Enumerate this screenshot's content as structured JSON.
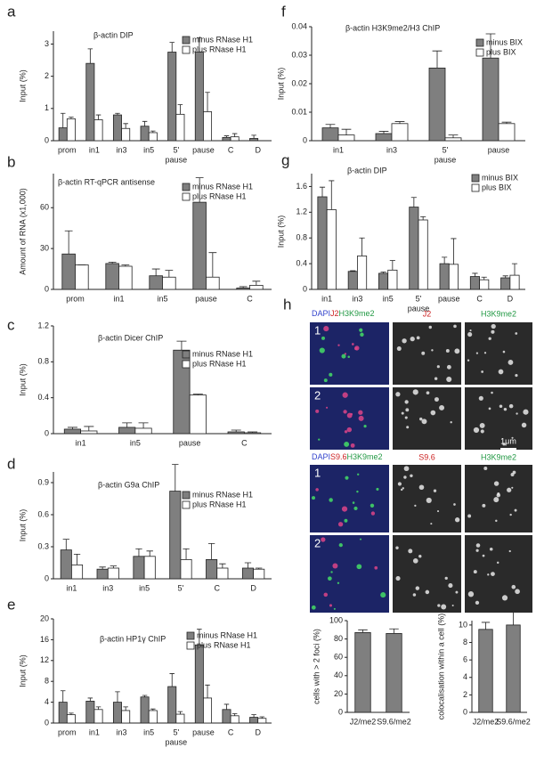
{
  "chart_data": [
    {
      "panel": "a",
      "type": "bar",
      "title": "β-actin DIP",
      "ylabel": "Input (%)",
      "xlabel": "pause",
      "categories": [
        "prom",
        "in1",
        "in3",
        "in5",
        "5'",
        "pause",
        "C",
        "D"
      ],
      "series": [
        {
          "name": "minus RNase H1",
          "color": "#7f7f7f",
          "values": [
            0.4,
            2.4,
            0.8,
            0.45,
            2.75,
            2.75,
            0.1,
            0.07
          ],
          "errors": [
            0.45,
            0.45,
            0.05,
            0.15,
            0.3,
            0.45,
            0.05,
            0.1
          ]
        },
        {
          "name": "plus RNase H1",
          "color": "#ffffff",
          "values": [
            0.68,
            0.65,
            0.38,
            0.25,
            0.82,
            0.9,
            0.12,
            0
          ],
          "errors": [
            0.05,
            0.15,
            0.15,
            0.05,
            0.3,
            0.6,
            0.1,
            0
          ]
        }
      ],
      "ylim": [
        0,
        3.4
      ],
      "yticks": [
        0,
        1,
        2,
        3
      ],
      "legend": "upper right"
    },
    {
      "panel": "b",
      "type": "bar",
      "title": "β-actin RT-qPCR antisense",
      "ylabel": "Amount of  RNA (x1,000)",
      "categories": [
        "prom",
        "in1",
        "in5",
        "pause",
        "C"
      ],
      "series": [
        {
          "name": "minus RNase H1",
          "color": "#7f7f7f",
          "values": [
            26,
            19,
            10,
            64,
            1
          ],
          "errors": [
            17,
            1,
            5,
            18,
            1
          ]
        },
        {
          "name": "plus RNase H1",
          "color": "#ffffff",
          "values": [
            18,
            17,
            9,
            9,
            3
          ],
          "errors": [
            0,
            1,
            5,
            18,
            3
          ]
        }
      ],
      "ylim": [
        0,
        85
      ],
      "yticks": [
        0,
        30,
        60
      ],
      "legend": "upper right"
    },
    {
      "panel": "c",
      "type": "bar",
      "title": "β-actin Dicer ChIP",
      "ylabel": "Input (%)",
      "categories": [
        "in1",
        "in5",
        "pause",
        "C"
      ],
      "series": [
        {
          "name": "minus RNase H1",
          "color": "#7f7f7f",
          "values": [
            0.05,
            0.07,
            0.93,
            0.02
          ],
          "errors": [
            0.02,
            0.05,
            0.1,
            0.02
          ]
        },
        {
          "name": "plus RNase H1",
          "color": "#ffffff",
          "values": [
            0.03,
            0.06,
            0.43,
            0.01
          ],
          "errors": [
            0.05,
            0.06,
            0.01,
            0.01
          ]
        }
      ],
      "ylim": [
        0,
        1.2
      ],
      "yticks": [
        0,
        0.4,
        0.8,
        1.2
      ],
      "legend": "upper right"
    },
    {
      "panel": "d",
      "type": "bar",
      "title": "β-actin G9a ChIP",
      "ylabel": "Input (%)",
      "categories": [
        "in1",
        "in3",
        "in5",
        "5'",
        "C",
        "D"
      ],
      "series": [
        {
          "name": "minus RNase H1",
          "color": "#7f7f7f",
          "values": [
            0.27,
            0.09,
            0.21,
            0.82,
            0.18,
            0.1
          ],
          "errors": [
            0.1,
            0.02,
            0.07,
            0.25,
            0.15,
            0.05
          ]
        },
        {
          "name": "plus RNase H1",
          "color": "#ffffff",
          "values": [
            0.13,
            0.1,
            0.21,
            0.18,
            0.1,
            0.09
          ],
          "errors": [
            0.1,
            0.02,
            0.05,
            0.1,
            0.04,
            0.01
          ]
        }
      ],
      "ylim": [
        0,
        1.0
      ],
      "yticks": [
        0,
        0.3,
        0.6,
        0.9
      ],
      "legend": "upper right"
    },
    {
      "panel": "e",
      "type": "bar",
      "title": "β-actin HP1γ ChIP",
      "ylabel": "Input (%)",
      "xlabel": "pause",
      "categories": [
        "prom",
        "in1",
        "in3",
        "in5",
        "5'",
        "pause",
        "C",
        "D"
      ],
      "series": [
        {
          "name": "minus RNase H1",
          "color": "#7f7f7f",
          "values": [
            4,
            4.2,
            4,
            5,
            7,
            15,
            2.6,
            1.1
          ],
          "errors": [
            2.2,
            0.6,
            2,
            0.3,
            2.5,
            3,
            1,
            0.5
          ]
        },
        {
          "name": "plus RNase H1",
          "color": "#ffffff",
          "values": [
            1.6,
            2.6,
            2.4,
            2.4,
            1.7,
            4.8,
            1.4,
            0.9
          ],
          "errors": [
            0.3,
            0.5,
            0.7,
            0.3,
            0.5,
            2.5,
            0.4,
            0.3
          ]
        }
      ],
      "ylim": [
        0,
        20
      ],
      "yticks": [
        0,
        4,
        8,
        12,
        16,
        20
      ],
      "legend": "upper right"
    },
    {
      "panel": "f",
      "type": "bar",
      "title": "β-actin H3K9me2/H3 ChIP",
      "ylabel": "Input (%)",
      "xlabel": "pause",
      "categories": [
        "in1",
        "in3",
        "5'",
        "pause"
      ],
      "series": [
        {
          "name": "minus BIX",
          "color": "#7f7f7f",
          "values": [
            0.0045,
            0.0025,
            0.0255,
            0.029
          ],
          "errors": [
            0.0012,
            0.0008,
            0.006,
            0.0085
          ]
        },
        {
          "name": "plus BIX",
          "color": "#ffffff",
          "values": [
            0.002,
            0.006,
            0.001,
            0.006
          ],
          "errors": [
            0.002,
            0.0007,
            0.001,
            0.0005
          ]
        }
      ],
      "ylim": [
        0,
        0.04
      ],
      "yticks": [
        0,
        0.01,
        0.02,
        0.03,
        0.04
      ],
      "legend": "upper right"
    },
    {
      "panel": "g",
      "type": "bar",
      "title": "β-actin DIP",
      "ylabel": "Input (%)",
      "xlabel": "pause",
      "categories": [
        "in1",
        "in3",
        "in5",
        "5'",
        "pause",
        "C",
        "D"
      ],
      "series": [
        {
          "name": "minus BIX",
          "color": "#7f7f7f",
          "values": [
            1.44,
            0.28,
            0.25,
            1.28,
            0.4,
            0.2,
            0.18
          ],
          "errors": [
            0.15,
            0.01,
            0.02,
            0.15,
            0.1,
            0.05,
            0.03
          ]
        },
        {
          "name": "plus BIX",
          "color": "#ffffff",
          "values": [
            1.24,
            0.52,
            0.3,
            1.08,
            0.39,
            0.15,
            0.22
          ],
          "errors": [
            0.45,
            0.28,
            0.15,
            0.05,
            0.4,
            0.04,
            0.18
          ]
        }
      ],
      "ylim": [
        0,
        1.8
      ],
      "yticks": [
        0,
        0.4,
        0.8,
        1.2,
        1.6
      ],
      "legend": "upper right"
    },
    {
      "type": "bar",
      "ylabel": "cells with > 2 foci (%)",
      "categories": [
        "J2/me2",
        "S9.6/me2"
      ],
      "series": [
        {
          "color": "#7f7f7f",
          "values": [
            87,
            86
          ],
          "errors": [
            3,
            5
          ]
        }
      ],
      "ylim": [
        0,
        100
      ],
      "yticks": [
        0,
        20,
        40,
        60,
        80,
        100
      ]
    },
    {
      "type": "bar",
      "ylabel": "colocalisation within a cell (%)",
      "categories": [
        "J2/me2",
        "S9.6/me2"
      ],
      "series": [
        {
          "color": "#7f7f7f",
          "values": [
            9.5,
            10
          ],
          "errors": [
            0.8,
            3
          ]
        }
      ],
      "ylim": [
        0,
        10.5
      ],
      "yticks": [
        0,
        2,
        4,
        6,
        8,
        10
      ]
    }
  ],
  "panel_h": {
    "letter": "h",
    "header1": [
      {
        "text": "DAPI",
        "color": "#3344cc"
      },
      {
        "text": "J2",
        "color": "#cc2222"
      },
      {
        "text": "H3K9me2",
        "color": "#229944"
      }
    ],
    "titles1": [
      {
        "text": "J2",
        "color": "#cc2222"
      },
      {
        "text": "H3K9me2",
        "color": "#229944"
      }
    ],
    "header2": [
      {
        "text": "DAPI",
        "color": "#3344cc"
      },
      {
        "text": "S9.6",
        "color": "#cc2222"
      },
      {
        "text": "H3K9me2",
        "color": "#229944"
      }
    ],
    "titles2": [
      {
        "text": "S9.6",
        "color": "#cc2222"
      },
      {
        "text": "H3K9me2",
        "color": "#229944"
      }
    ],
    "row_numbers": [
      "1",
      "2",
      "1",
      "2"
    ],
    "scale_bar": "1μm"
  }
}
